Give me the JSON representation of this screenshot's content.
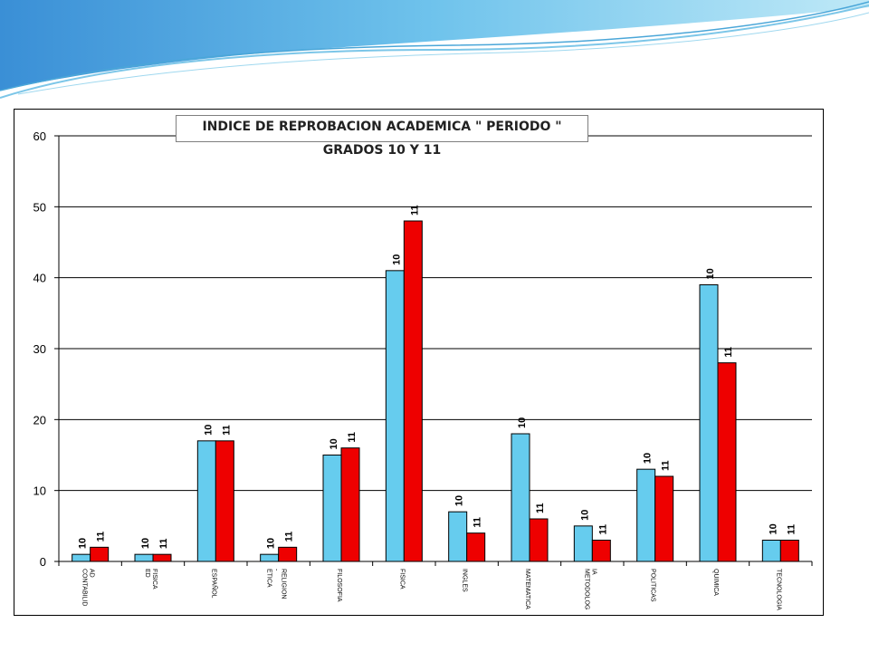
{
  "chart_data": {
    "type": "bar",
    "title": "INDICE DE REPROBACION ACADEMICA \" PERIODO \"",
    "subtitle": "GRADOS 10 Y 11",
    "categories": [
      "CONTABILID AD",
      "ED FISICA",
      "ESPAÑOL",
      "ETICA - RELIGION",
      "FILOSOFIA",
      "FISICA",
      "INGLES",
      "MATEMATICA",
      "METODOLOG IA",
      "POLITICAS",
      "QUIMICA",
      "TECNOLOGIA"
    ],
    "series": [
      {
        "name": "10",
        "color": "#66ccee",
        "values": [
          1,
          1,
          17,
          1,
          15,
          41,
          7,
          18,
          5,
          13,
          39,
          3
        ]
      },
      {
        "name": "11",
        "color": "#ee0000",
        "values": [
          2,
          1,
          17,
          2,
          16,
          48,
          4,
          6,
          3,
          12,
          28,
          3
        ]
      }
    ],
    "yticks": [
      "0",
      "10",
      "20",
      "30",
      "40",
      "50",
      "60"
    ],
    "ylim": [
      0,
      60
    ],
    "grid": true,
    "legend": "none",
    "xlabel": "",
    "ylabel": ""
  }
}
